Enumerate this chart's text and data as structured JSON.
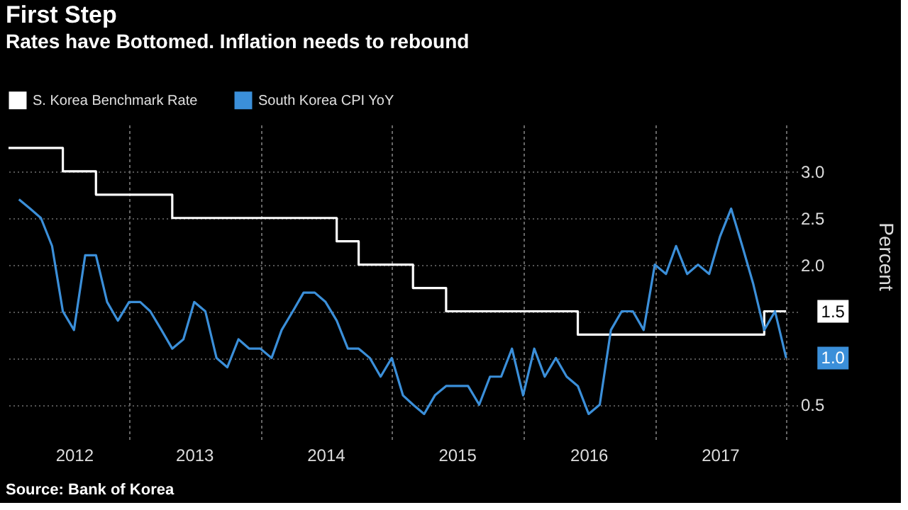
{
  "chart_data": {
    "type": "line",
    "title": "First Step",
    "subtitle": "Rates have Bottomed. Inflation needs to rebound",
    "ylabel": "Percent",
    "series": [
      {
        "name": "S. Korea Benchmark Rate",
        "type": "step",
        "color": "#ffffff",
        "x": [
          "2012-02",
          "2012-07",
          "2012-10",
          "2013-05",
          "2014-08",
          "2014-10",
          "2015-03",
          "2015-06",
          "2016-06",
          "2017-11",
          "2018-01"
        ],
        "values": [
          3.25,
          3.0,
          2.75,
          2.5,
          2.25,
          2.0,
          1.75,
          1.5,
          1.25,
          1.5,
          1.5
        ]
      },
      {
        "name": "South Korea CPI YoY",
        "type": "line",
        "color": "#3b8fd9",
        "x": [
          "2012-03",
          "2012-04",
          "2012-05",
          "2012-06",
          "2012-07",
          "2012-08",
          "2012-09",
          "2012-10",
          "2012-11",
          "2012-12",
          "2013-01",
          "2013-02",
          "2013-03",
          "2013-04",
          "2013-05",
          "2013-06",
          "2013-07",
          "2013-08",
          "2013-09",
          "2013-10",
          "2013-11",
          "2013-12",
          "2014-01",
          "2014-02",
          "2014-03",
          "2014-04",
          "2014-05",
          "2014-06",
          "2014-07",
          "2014-08",
          "2014-09",
          "2014-10",
          "2014-11",
          "2014-12",
          "2015-01",
          "2015-02",
          "2015-03",
          "2015-04",
          "2015-05",
          "2015-06",
          "2015-07",
          "2015-08",
          "2015-09",
          "2015-10",
          "2015-11",
          "2015-12",
          "2016-01",
          "2016-02",
          "2016-03",
          "2016-04",
          "2016-05",
          "2016-06",
          "2016-07",
          "2016-08",
          "2016-09",
          "2016-10",
          "2016-11",
          "2016-12",
          "2017-01",
          "2017-02",
          "2017-03",
          "2017-04",
          "2017-05",
          "2017-06",
          "2017-07",
          "2017-08",
          "2017-09",
          "2017-10",
          "2017-11",
          "2017-12",
          "2018-01"
        ],
        "values": [
          2.7,
          2.6,
          2.5,
          2.2,
          1.5,
          1.3,
          2.1,
          2.1,
          1.6,
          1.4,
          1.6,
          1.6,
          1.5,
          1.3,
          1.1,
          1.2,
          1.6,
          1.5,
          1.0,
          0.9,
          1.2,
          1.1,
          1.1,
          1.0,
          1.3,
          1.5,
          1.7,
          1.7,
          1.6,
          1.4,
          1.1,
          1.1,
          1.0,
          0.8,
          1.0,
          0.6,
          0.5,
          0.4,
          0.6,
          0.7,
          0.7,
          0.7,
          0.5,
          0.8,
          0.8,
          1.1,
          0.6,
          1.1,
          0.8,
          1.0,
          0.8,
          0.7,
          0.4,
          0.5,
          1.3,
          1.5,
          1.5,
          1.3,
          2.0,
          1.9,
          2.2,
          1.9,
          2.0,
          1.9,
          2.3,
          2.6,
          2.2,
          1.8,
          1.3,
          1.5,
          1.0
        ]
      }
    ],
    "xlim": [
      "2012-02",
      "2018-02"
    ],
    "xticks": [
      {
        "value": "2012-08",
        "label": "2012"
      },
      {
        "value": "2013-01",
        "label": null
      },
      {
        "value": "2013-07",
        "label": "2013"
      },
      {
        "value": "2014-01",
        "label": null
      },
      {
        "value": "2014-07",
        "label": "2014"
      },
      {
        "value": "2015-01",
        "label": null
      },
      {
        "value": "2015-07",
        "label": "2015"
      },
      {
        "value": "2016-01",
        "label": null
      },
      {
        "value": "2016-07",
        "label": "2016"
      },
      {
        "value": "2017-01",
        "label": null
      },
      {
        "value": "2017-07",
        "label": "2017"
      },
      {
        "value": "2018-01",
        "label": null
      }
    ],
    "ylim": [
      0.13,
      3.5
    ],
    "yticks": [
      0.5,
      {
        "value": 1.0,
        "label": null
      },
      {
        "value": 1.5,
        "label": null
      },
      {
        "value": 2,
        "label": "2.0"
      },
      2.5,
      {
        "value": 3,
        "label": "3.0"
      }
    ],
    "grid": true,
    "legend": "top left",
    "annotations": [
      "Source: Bank of Korea",
      {
        "text": "1.5",
        "x": "2018-01",
        "y": 1.5
      },
      {
        "text": "1.0",
        "x": "2018-01",
        "y": 1.0
      }
    ]
  }
}
